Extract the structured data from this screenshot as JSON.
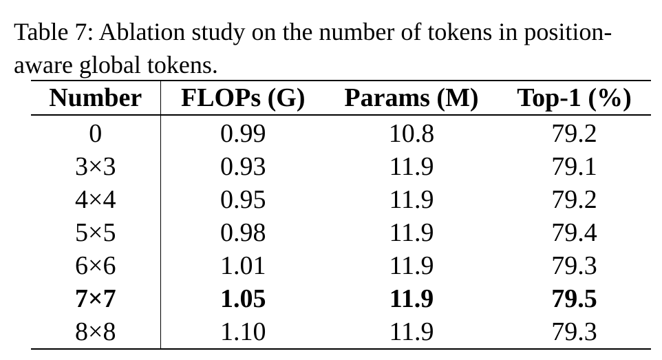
{
  "caption": {
    "line1": "Table 7: Ablation study on the number of tokens in position-",
    "line2": "aware global tokens."
  },
  "table": {
    "headers": [
      "Number",
      "FLOPs (G)",
      "Params (M)",
      "Top-1 (%)"
    ],
    "rows": [
      {
        "number": "0",
        "flops": "0.99",
        "params": "10.8",
        "top1": "79.2",
        "bold": false
      },
      {
        "number": "3×3",
        "flops": "0.93",
        "params": "11.9",
        "top1": "79.1",
        "bold": false
      },
      {
        "number": "4×4",
        "flops": "0.95",
        "params": "11.9",
        "top1": "79.2",
        "bold": false
      },
      {
        "number": "5×5",
        "flops": "0.98",
        "params": "11.9",
        "top1": "79.4",
        "bold": false
      },
      {
        "number": "6×6",
        "flops": "1.01",
        "params": "11.9",
        "top1": "79.3",
        "bold": false
      },
      {
        "number": "7×7",
        "flops": "1.05",
        "params": "11.9",
        "top1": "79.5",
        "bold": true
      },
      {
        "number": "8×8",
        "flops": "1.10",
        "params": "11.9",
        "top1": "79.3",
        "bold": false
      }
    ]
  }
}
